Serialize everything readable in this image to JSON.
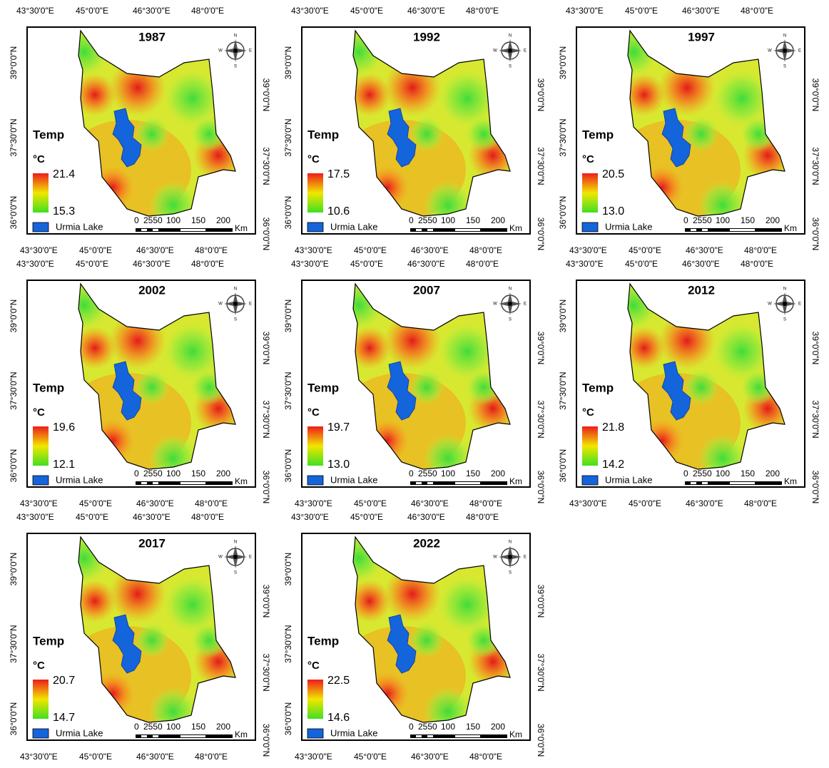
{
  "labels": {
    "legend_title": "Temp",
    "unit": "°C",
    "lake": "Urmia Lake",
    "scale_unit": "Km",
    "scale_ticks": [
      "0",
      "2550",
      "100",
      "150",
      "200"
    ],
    "compass": {
      "n": "N",
      "e": "E",
      "s": "S",
      "w": "W"
    },
    "lon": [
      "43°30'0\"E",
      "45°0'0\"E",
      "46°30'0\"E",
      "48°0'0\"E"
    ],
    "lat": [
      "36°0'0\"N",
      "37°30'0\"N",
      "39°0'0\"N"
    ]
  },
  "panels": [
    {
      "year": "1987",
      "max": "21.4",
      "min": "15.3"
    },
    {
      "year": "1992",
      "max": "17.5",
      "min": "10.6"
    },
    {
      "year": "1997",
      "max": "20.5",
      "min": "13.0"
    },
    {
      "year": "2002",
      "max": "19.6",
      "min": "12.1"
    },
    {
      "year": "2007",
      "max": "19.7",
      "min": "13.0"
    },
    {
      "year": "2012",
      "max": "21.8",
      "min": "14.2"
    },
    {
      "year": "2017",
      "max": "20.7",
      "min": "14.7"
    },
    {
      "year": "2022",
      "max": "22.5",
      "min": "14.6"
    }
  ]
}
